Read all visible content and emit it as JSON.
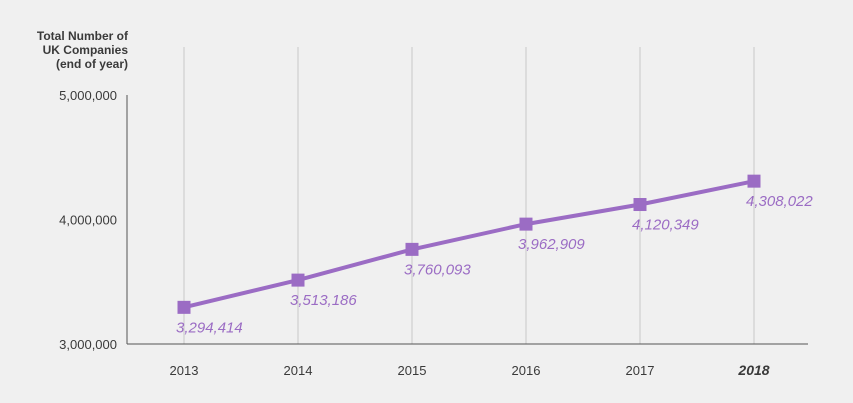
{
  "chart_data": {
    "type": "line",
    "ylabel_lines": [
      "Total Number of",
      "UK Companies",
      "(end of year)"
    ],
    "categories": [
      "2013",
      "2014",
      "2015",
      "2016",
      "2017",
      "2018"
    ],
    "highlight_category": "2018",
    "series": [
      {
        "values": [
          3294414,
          3513186,
          3760093,
          3962909,
          4120349,
          4308022
        ]
      }
    ],
    "data_labels": [
      "3,294,414",
      "3,513,186",
      "3,760,093",
      "3,962,909",
      "4,120,349",
      "4,308,022"
    ],
    "yticks": [
      {
        "value": 3000000,
        "label": "3,000,000"
      },
      {
        "value": 4000000,
        "label": "4,000,000"
      },
      {
        "value": 5000000,
        "label": "5,000,000"
      }
    ],
    "ylim": [
      3000000,
      5000000
    ],
    "grid": "vertical",
    "line_color": "#9b6cc4",
    "label_color": "#9b6cc4",
    "axis_color": "#555555",
    "grid_color": "#c8c8c8"
  }
}
